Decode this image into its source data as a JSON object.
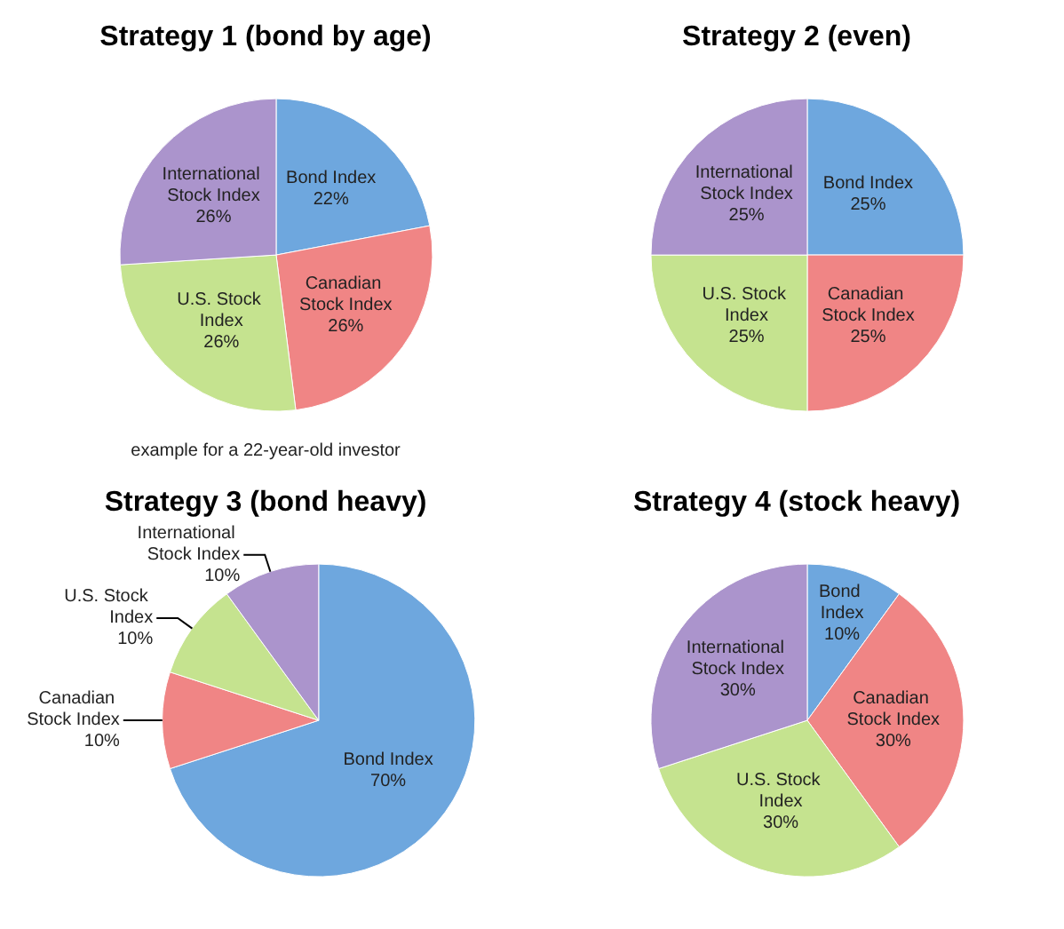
{
  "chart_data": [
    {
      "type": "pie",
      "title": "Strategy 1 (bond by age)",
      "categories": [
        "Bond Index",
        "Canadian Stock Index",
        "U.S. Stock Index",
        "International Stock Index"
      ],
      "values": [
        22,
        26,
        26,
        26
      ],
      "value_labels": [
        "22%",
        "26%",
        "26%",
        "26%"
      ],
      "colors": [
        "#6ea7de",
        "#f08585",
        "#c5e38f",
        "#ab94cc"
      ],
      "annotations": [
        "example for a 22-year-old investor"
      ]
    },
    {
      "type": "pie",
      "title": "Strategy 2 (even)",
      "categories": [
        "Bond Index",
        "Canadian Stock Index",
        "U.S. Stock Index",
        "International Stock Index"
      ],
      "values": [
        25,
        25,
        25,
        25
      ],
      "value_labels": [
        "25%",
        "25%",
        "25%",
        "25%"
      ],
      "colors": [
        "#6ea7de",
        "#f08585",
        "#c5e38f",
        "#ab94cc"
      ]
    },
    {
      "type": "pie",
      "title": "Strategy 3 (bond heavy)",
      "categories": [
        "Bond Index",
        "Canadian Stock Index",
        "U.S. Stock Index",
        "International Stock Index"
      ],
      "values": [
        70,
        10,
        10,
        10
      ],
      "value_labels": [
        "70%",
        "10%",
        "10%",
        "10%"
      ],
      "colors": [
        "#6ea7de",
        "#f08585",
        "#c5e38f",
        "#ab94cc"
      ]
    },
    {
      "type": "pie",
      "title": "Strategy 4 (stock heavy)",
      "categories": [
        "Bond Index",
        "Canadian Stock Index",
        "U.S. Stock Index",
        "International Stock Index"
      ],
      "values": [
        10,
        30,
        30,
        30
      ],
      "value_labels": [
        "10%",
        "30%",
        "30%",
        "30%"
      ],
      "colors": [
        "#6ea7de",
        "#f08585",
        "#c5e38f",
        "#ab94cc"
      ]
    }
  ]
}
